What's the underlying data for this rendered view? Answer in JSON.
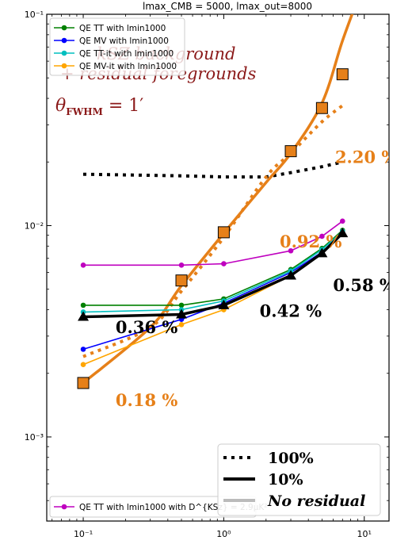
{
  "chart_data": {
    "type": "line",
    "title": "lmax_CMB = 5000, lmax_out=8000",
    "xlabel": "",
    "ylabel": "",
    "xscale": "log",
    "yscale": "log",
    "xlim": [
      0.055,
      15
    ],
    "ylim": [
      0.0004,
      0.1
    ],
    "xticks": [
      {
        "value": 0.1,
        "label": "10⁻¹"
      },
      {
        "value": 1,
        "label": "10⁰"
      },
      {
        "value": 10,
        "label": "10¹"
      }
    ],
    "yticks": [
      {
        "value": 0.001,
        "label": "10⁻³"
      },
      {
        "value": 0.01,
        "label": "10⁻²"
      },
      {
        "value": 0.1,
        "label": "10⁻¹"
      }
    ],
    "grid": false,
    "series": [
      {
        "name": "QE TT with lmin1000",
        "color": "#008000",
        "marker": "circle",
        "x": [
          0.1,
          0.5,
          1,
          3,
          5,
          7
        ],
        "y": [
          0.0042,
          0.0042,
          0.0045,
          0.0062,
          0.0078,
          0.0095
        ]
      },
      {
        "name": "QE MV with lmin1000",
        "color": "#0000ff",
        "marker": "circle",
        "x": [
          0.1,
          0.5,
          1,
          3,
          5,
          7
        ],
        "y": [
          0.0026,
          0.0036,
          0.0043,
          0.006,
          0.0075,
          0.0093
        ]
      },
      {
        "name": "QE TT-it with lmin1000",
        "color": "#00bfbf",
        "marker": "circle",
        "x": [
          0.1,
          0.5,
          1,
          3,
          5,
          7
        ],
        "y": [
          0.0039,
          0.004,
          0.0044,
          0.0061,
          0.0077,
          0.0094
        ]
      },
      {
        "name": "QE MV-it with lmin1000",
        "color": "#ffa500",
        "marker": "circle",
        "x": [
          0.1,
          0.5,
          1,
          3,
          5,
          7
        ],
        "y": [
          0.0022,
          0.0034,
          0.004,
          0.0058,
          0.0074,
          0.0092
        ]
      },
      {
        "name": "QE TT with lmin1000 with D^{KSz} = 2.9μK²",
        "color": "#bf00bf",
        "marker": "circle",
        "x": [
          0.1,
          0.5,
          1,
          3,
          5,
          7
        ],
        "y": [
          0.0065,
          0.0065,
          0.0066,
          0.0076,
          0.0089,
          0.0105
        ]
      },
      {
        "name": "100%",
        "color": "#000000",
        "style": "dotted-black",
        "x": [
          0.1,
          0.5,
          1,
          2,
          3,
          5,
          7
        ],
        "y": [
          0.0175,
          0.0172,
          0.017,
          0.017,
          0.0178,
          0.019,
          0.02
        ]
      },
      {
        "name": "100% (orange)",
        "color": "#e68019",
        "style": "dotted-orange",
        "x": [
          0.1,
          0.3,
          0.5,
          1,
          2,
          3,
          5,
          7
        ],
        "y": [
          0.0024,
          0.0033,
          0.0049,
          0.0088,
          0.017,
          0.022,
          0.031,
          0.037
        ]
      },
      {
        "name": "10%",
        "color": "#000000",
        "style": "solid-black",
        "marker": "triangle",
        "x": [
          0.1,
          0.5,
          1,
          3,
          5,
          7
        ],
        "y": [
          0.0037,
          0.0038,
          0.0042,
          0.0058,
          0.0074,
          0.0092
        ]
      },
      {
        "name": "No residual",
        "color": "#e68019",
        "style": "solid-orange",
        "x": [
          0.1,
          0.3,
          0.5,
          1,
          2,
          3,
          5,
          7
        ],
        "y": [
          0.0018,
          0.0033,
          0.0052,
          0.0092,
          0.016,
          0.022,
          0.038,
          0.075
        ]
      },
      {
        "name": "orange squares",
        "color": "#e68019",
        "marker": "square",
        "x": [
          0.1,
          0.5,
          1,
          3,
          5,
          7
        ],
        "y": [
          0.0018,
          0.0055,
          0.0093,
          0.0225,
          0.036,
          0.052
        ]
      }
    ],
    "annotations": [
      {
        "text": "2.20 %",
        "x": 6.2,
        "y": 0.0198,
        "color": "#e68019"
      },
      {
        "text": "0.92 %",
        "x": 2.5,
        "y": 0.0079,
        "color": "#e68019"
      },
      {
        "text": "0.58 %",
        "x": 6.0,
        "y": 0.0049,
        "color": "#000000"
      },
      {
        "text": "0.42 %",
        "x": 1.8,
        "y": 0.0037,
        "color": "#000000"
      },
      {
        "text": "0.36 %",
        "x": 0.17,
        "y": 0.0031,
        "color": "#000000"
      },
      {
        "text": "0.18 %",
        "x": 0.17,
        "y": 0.0014,
        "color": "#e68019"
      }
    ],
    "overlay_text": {
      "line1": "kSZ background",
      "line2": "+ residual foregrounds",
      "theta_prefix": "θ",
      "theta_sub": "FWHM",
      "theta_value": " = 1′"
    },
    "legend_top": {
      "placement": "upper-left",
      "entries": [
        "QE TT with lmin1000",
        "QE MV with lmin1000",
        "QE TT-it with lmin1000",
        "QE MV-it with lmin1000"
      ]
    },
    "legend_bottom_left": {
      "placement": "lower-left",
      "entries": [
        "QE TT with lmin1000 with D^{KSz} = 2.9μK²"
      ]
    },
    "legend_bottom_right": {
      "placement": "lower-right",
      "entries": [
        "100%",
        "10%",
        "No residual"
      ]
    }
  }
}
